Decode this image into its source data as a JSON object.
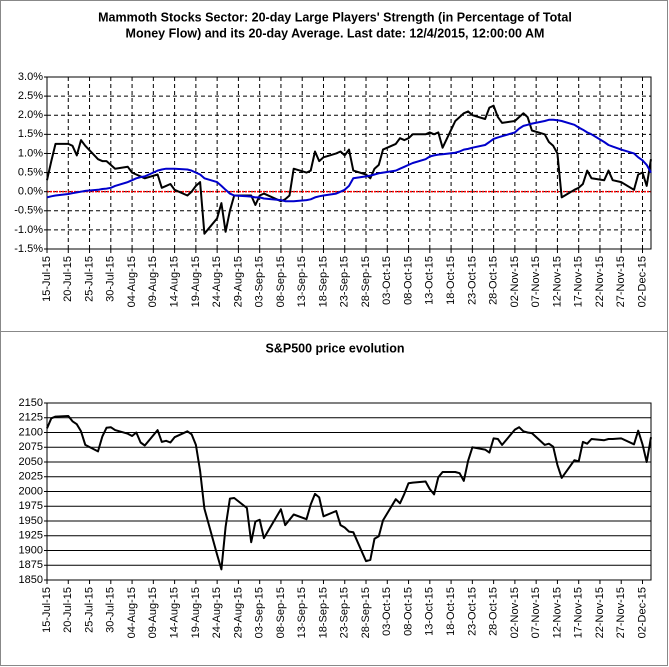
{
  "chart_data": [
    {
      "type": "line",
      "title": [
        "Mammoth Stocks Sector: 20-day Large Players' Strength (in Percentage of Total",
        "Money Flow) and its 20-day Average. Last date: 12/4/2015, 12:00:00 AM"
      ],
      "x": [
        "15-Jul-15",
        "16-Jul-15",
        "17-Jul-15",
        "20-Jul-15",
        "21-Jul-15",
        "22-Jul-15",
        "23-Jul-15",
        "24-Jul-15",
        "27-Jul-15",
        "28-Jul-15",
        "29-Jul-15",
        "30-Jul-15",
        "31-Jul-15",
        "03-Aug-15",
        "04-Aug-15",
        "05-Aug-15",
        "06-Aug-15",
        "07-Aug-15",
        "10-Aug-15",
        "11-Aug-15",
        "12-Aug-15",
        "13-Aug-15",
        "14-Aug-15",
        "17-Aug-15",
        "18-Aug-15",
        "19-Aug-15",
        "20-Aug-15",
        "21-Aug-15",
        "24-Aug-15",
        "25-Aug-15",
        "26-Aug-15",
        "27-Aug-15",
        "28-Aug-15",
        "31-Aug-15",
        "01-Sep-15",
        "02-Sep-15",
        "03-Sep-15",
        "04-Sep-15",
        "08-Sep-15",
        "09-Sep-15",
        "10-Sep-15",
        "11-Sep-15",
        "14-Sep-15",
        "15-Sep-15",
        "16-Sep-15",
        "17-Sep-15",
        "18-Sep-15",
        "21-Sep-15",
        "22-Sep-15",
        "23-Sep-15",
        "24-Sep-15",
        "25-Sep-15",
        "28-Sep-15",
        "29-Sep-15",
        "30-Sep-15",
        "01-Oct-15",
        "02-Oct-15",
        "05-Oct-15",
        "06-Oct-15",
        "07-Oct-15",
        "08-Oct-15",
        "09-Oct-15",
        "12-Oct-15",
        "13-Oct-15",
        "14-Oct-15",
        "15-Oct-15",
        "16-Oct-15",
        "19-Oct-15",
        "20-Oct-15",
        "21-Oct-15",
        "22-Oct-15",
        "23-Oct-15",
        "26-Oct-15",
        "27-Oct-15",
        "28-Oct-15",
        "29-Oct-15",
        "30-Oct-15",
        "02-Nov-15",
        "03-Nov-15",
        "04-Nov-15",
        "05-Nov-15",
        "06-Nov-15",
        "09-Nov-15",
        "10-Nov-15",
        "11-Nov-15",
        "12-Nov-15",
        "13-Nov-15",
        "16-Nov-15",
        "17-Nov-15",
        "18-Nov-15",
        "19-Nov-15",
        "20-Nov-15",
        "23-Nov-15",
        "24-Nov-15",
        "25-Nov-15",
        "27-Nov-15",
        "30-Nov-15",
        "01-Dec-15",
        "02-Dec-15",
        "03-Dec-15",
        "04-Dec-15"
      ],
      "series": [
        {
          "color": "#000000",
          "values": [
            0.3,
            0.8,
            1.25,
            1.25,
            1.2,
            0.95,
            1.35,
            1.2,
            0.85,
            0.8,
            0.8,
            0.7,
            0.6,
            0.65,
            0.5,
            0.45,
            0.4,
            0.35,
            0.45,
            0.1,
            0.15,
            0.2,
            0.05,
            -0.1,
            0.0,
            0.15,
            0.25,
            -1.1,
            -0.7,
            -0.3,
            -1.05,
            -0.5,
            -0.1,
            -0.1,
            -0.1,
            -0.35,
            -0.1,
            -0.05,
            -0.25,
            -0.2,
            -0.1,
            0.6,
            0.5,
            0.55,
            1.05,
            0.8,
            0.9,
            1.0,
            1.05,
            0.95,
            1.1,
            0.55,
            0.45,
            0.35,
            0.6,
            0.7,
            1.1,
            1.25,
            1.4,
            1.35,
            1.4,
            1.5,
            1.5,
            1.55,
            1.5,
            1.55,
            1.15,
            1.85,
            1.95,
            2.05,
            2.1,
            2.0,
            1.9,
            2.2,
            2.25,
            1.95,
            1.8,
            1.85,
            1.95,
            2.05,
            1.95,
            1.6,
            1.5,
            1.3,
            1.2,
            1.0,
            -0.15,
            0.05,
            0.1,
            0.2,
            0.55,
            0.35,
            0.3,
            0.55,
            0.3,
            0.25,
            0.05,
            0.45,
            0.5,
            0.15,
            0.85
          ]
        },
        {
          "color": "#0000cc",
          "values": [
            -0.15,
            -0.12,
            -0.1,
            -0.06,
            -0.04,
            -0.02,
            0.0,
            0.02,
            0.05,
            0.07,
            0.08,
            0.1,
            0.15,
            0.25,
            0.3,
            0.35,
            0.38,
            0.4,
            0.55,
            0.58,
            0.6,
            0.6,
            0.6,
            0.58,
            0.55,
            0.5,
            0.45,
            0.35,
            0.25,
            0.15,
            0.05,
            -0.05,
            -0.1,
            -0.12,
            -0.13,
            -0.15,
            -0.15,
            -0.18,
            -0.22,
            -0.25,
            -0.25,
            -0.25,
            -0.22,
            -0.2,
            -0.15,
            -0.12,
            -0.1,
            -0.05,
            0.0,
            0.05,
            0.15,
            0.35,
            0.4,
            0.42,
            0.45,
            0.48,
            0.5,
            0.55,
            0.6,
            0.65,
            0.7,
            0.75,
            0.85,
            0.92,
            0.95,
            0.97,
            0.98,
            1.02,
            1.05,
            1.1,
            1.12,
            1.15,
            1.22,
            1.3,
            1.38,
            1.42,
            1.45,
            1.55,
            1.65,
            1.72,
            1.75,
            1.78,
            1.85,
            1.88,
            1.88,
            1.87,
            1.85,
            1.75,
            1.68,
            1.62,
            1.55,
            1.5,
            1.3,
            1.22,
            1.18,
            1.1,
            1.0,
            0.9,
            0.82,
            0.7,
            0.5
          ]
        }
      ],
      "hline": {
        "value": 0,
        "color": "#ff0000"
      },
      "xlim": [
        "15-Jul-15",
        "04-Dec-15"
      ],
      "xticks": [
        "15-Jul-15",
        "20-Jul-15",
        "25-Jul-15",
        "30-Jul-15",
        "04-Aug-15",
        "09-Aug-15",
        "14-Aug-15",
        "19-Aug-15",
        "24-Aug-15",
        "29-Aug-15",
        "03-Sep-15",
        "08-Sep-15",
        "13-Sep-15",
        "18-Sep-15",
        "23-Sep-15",
        "28-Sep-15",
        "03-Oct-15",
        "08-Oct-15",
        "13-Oct-15",
        "18-Oct-15",
        "23-Oct-15",
        "28-Oct-15",
        "02-Nov-15",
        "07-Nov-15",
        "12-Nov-15",
        "17-Nov-15",
        "22-Nov-15",
        "27-Nov-15",
        "02-Dec-15"
      ],
      "ylim": [
        -1.5,
        3.0
      ],
      "yticks": [
        {
          "value": 3.0,
          "label": "3.0%"
        },
        {
          "value": 2.5,
          "label": "2.5%"
        },
        {
          "value": 2.0,
          "label": "2.0%"
        },
        {
          "value": 1.5,
          "label": "1.5%"
        },
        {
          "value": 1.0,
          "label": "1.0%"
        },
        {
          "value": 0.5,
          "label": "0.5%"
        },
        {
          "value": 0.0,
          "label": "0.0%"
        },
        {
          "value": -0.5,
          "label": "-0.5%"
        },
        {
          "value": -1.0,
          "label": "-1.0%"
        },
        {
          "value": -1.5,
          "label": "-1.5%"
        }
      ],
      "xgrid": true,
      "ygrid": true,
      "grid_style": "dashed"
    },
    {
      "type": "line",
      "title": [
        "S&P500 price evolution"
      ],
      "x": [
        "15-Jul-15",
        "16-Jul-15",
        "17-Jul-15",
        "20-Jul-15",
        "21-Jul-15",
        "22-Jul-15",
        "23-Jul-15",
        "24-Jul-15",
        "27-Jul-15",
        "28-Jul-15",
        "29-Jul-15",
        "30-Jul-15",
        "31-Jul-15",
        "03-Aug-15",
        "04-Aug-15",
        "05-Aug-15",
        "06-Aug-15",
        "07-Aug-15",
        "10-Aug-15",
        "11-Aug-15",
        "12-Aug-15",
        "13-Aug-15",
        "14-Aug-15",
        "17-Aug-15",
        "18-Aug-15",
        "19-Aug-15",
        "20-Aug-15",
        "21-Aug-15",
        "24-Aug-15",
        "25-Aug-15",
        "26-Aug-15",
        "27-Aug-15",
        "28-Aug-15",
        "31-Aug-15",
        "01-Sep-15",
        "02-Sep-15",
        "03-Sep-15",
        "04-Sep-15",
        "08-Sep-15",
        "09-Sep-15",
        "10-Sep-15",
        "11-Sep-15",
        "14-Sep-15",
        "15-Sep-15",
        "16-Sep-15",
        "17-Sep-15",
        "18-Sep-15",
        "21-Sep-15",
        "22-Sep-15",
        "23-Sep-15",
        "24-Sep-15",
        "25-Sep-15",
        "28-Sep-15",
        "29-Sep-15",
        "30-Sep-15",
        "01-Oct-15",
        "02-Oct-15",
        "05-Oct-15",
        "06-Oct-15",
        "07-Oct-15",
        "08-Oct-15",
        "09-Oct-15",
        "12-Oct-15",
        "13-Oct-15",
        "14-Oct-15",
        "15-Oct-15",
        "16-Oct-15",
        "19-Oct-15",
        "20-Oct-15",
        "21-Oct-15",
        "22-Oct-15",
        "23-Oct-15",
        "26-Oct-15",
        "27-Oct-15",
        "28-Oct-15",
        "29-Oct-15",
        "30-Oct-15",
        "02-Nov-15",
        "03-Nov-15",
        "04-Nov-15",
        "05-Nov-15",
        "06-Nov-15",
        "09-Nov-15",
        "10-Nov-15",
        "11-Nov-15",
        "12-Nov-15",
        "13-Nov-15",
        "16-Nov-15",
        "17-Nov-15",
        "18-Nov-15",
        "19-Nov-15",
        "20-Nov-15",
        "23-Nov-15",
        "24-Nov-15",
        "25-Nov-15",
        "27-Nov-15",
        "30-Nov-15",
        "01-Dec-15",
        "02-Dec-15",
        "03-Dec-15",
        "04-Dec-15"
      ],
      "series": [
        {
          "color": "#000000",
          "values": [
            2107,
            2124,
            2127,
            2128,
            2119,
            2114,
            2102,
            2079,
            2068,
            2093,
            2108,
            2109,
            2104,
            2098,
            2094,
            2100,
            2083,
            2078,
            2104,
            2084,
            2086,
            2083,
            2092,
            2102,
            2097,
            2079,
            2035,
            1971,
            1893,
            1868,
            1940,
            1988,
            1989,
            1972,
            1914,
            1949,
            1952,
            1921,
            1970,
            1943,
            1952,
            1961,
            1953,
            1978,
            1996,
            1990,
            1958,
            1967,
            1943,
            1939,
            1932,
            1931,
            1882,
            1884,
            1920,
            1924,
            1951,
            1987,
            1980,
            1996,
            2014,
            2015,
            2017,
            2004,
            1995,
            2024,
            2033,
            2033,
            2031,
            2018,
            2052,
            2075,
            2071,
            2066,
            2090,
            2089,
            2079,
            2105,
            2109,
            2102,
            2100,
            2099,
            2079,
            2081,
            2076,
            2045,
            2023,
            2053,
            2051,
            2084,
            2081,
            2089,
            2087,
            2089,
            2089,
            2090,
            2080,
            2103,
            2080,
            2050,
            2092
          ]
        }
      ],
      "xlim": [
        "15-Jul-15",
        "04-Dec-15"
      ],
      "xticks": [
        "15-Jul-15",
        "20-Jul-15",
        "25-Jul-15",
        "30-Jul-15",
        "04-Aug-15",
        "09-Aug-15",
        "14-Aug-15",
        "19-Aug-15",
        "24-Aug-15",
        "29-Aug-15",
        "03-Sep-15",
        "08-Sep-15",
        "13-Sep-15",
        "18-Sep-15",
        "23-Sep-15",
        "28-Sep-15",
        "03-Oct-15",
        "08-Oct-15",
        "13-Oct-15",
        "18-Oct-15",
        "23-Oct-15",
        "28-Oct-15",
        "02-Nov-15",
        "07-Nov-15",
        "12-Nov-15",
        "17-Nov-15",
        "22-Nov-15",
        "27-Nov-15",
        "02-Dec-15"
      ],
      "ylim": [
        1850,
        2150
      ],
      "yticks": [
        2150,
        2125,
        2100,
        2075,
        2050,
        2025,
        2000,
        1975,
        1950,
        1925,
        1900,
        1875,
        1850
      ],
      "xgrid": false,
      "ygrid": true,
      "grid_style": "solid"
    }
  ]
}
